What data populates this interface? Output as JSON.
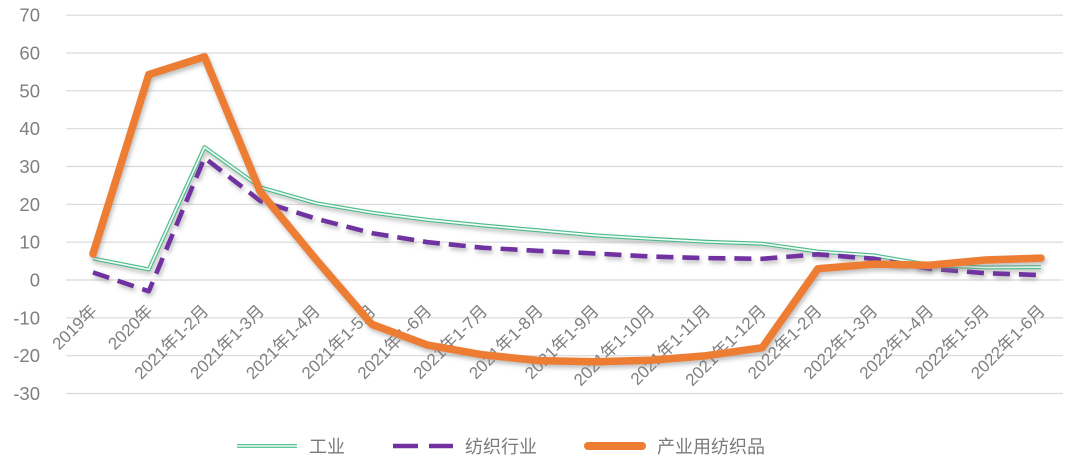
{
  "chart_data": {
    "type": "line",
    "title": "",
    "xlabel": "",
    "ylabel": "",
    "categories": [
      "2019年",
      "2020年",
      "2021年1-2月",
      "2021年1-3月",
      "2021年1-4月",
      "2021年1-5月",
      "2021年1-6月",
      "2021年1-7月",
      "2021年1-8月",
      "2021年1-9月",
      "2021年1-10月",
      "2021年1-11月",
      "2021年1-12月",
      "2022年1-2月",
      "2022年1-3月",
      "2022年1-4月",
      "2022年1-5月",
      "2022年1-6月"
    ],
    "series": [
      {
        "name": "工业",
        "color": "#4CBB8B",
        "inner_color": "#F2FBF7",
        "line_style": "thin-double",
        "values": [
          5.7,
          2.8,
          35.1,
          24.5,
          20.3,
          17.8,
          15.9,
          14.4,
          13.1,
          11.8,
          10.9,
          10.1,
          9.6,
          7.5,
          6.5,
          4.0,
          3.3,
          3.4
        ]
      },
      {
        "name": "纺织行业",
        "color": "#7030A0",
        "line_style": "dashed",
        "values": [
          2.0,
          -3.0,
          32.3,
          20.9,
          16.2,
          12.4,
          10.0,
          8.5,
          7.7,
          7.0,
          6.2,
          5.8,
          5.6,
          6.8,
          5.6,
          3.0,
          1.8,
          1.3
        ]
      },
      {
        "name": "产业用纺织品",
        "color": "#ED7D31",
        "line_style": "thick-solid",
        "values": [
          6.9,
          54.3,
          59.0,
          23.3,
          5.4,
          -11.7,
          -17.2,
          -19.8,
          -21.3,
          -21.6,
          -21.2,
          -20.0,
          -17.9,
          3.0,
          4.2,
          3.9,
          5.3,
          5.8
        ]
      }
    ],
    "ylim": [
      -30,
      70
    ],
    "yticks": [
      70,
      60,
      50,
      40,
      30,
      20,
      10,
      0,
      -10,
      -20,
      -30
    ],
    "grid": true,
    "legend_position": "bottom"
  },
  "style": {
    "background": "#FFFFFF",
    "grid_color": "#D9D9D9",
    "axis_text_color": "#7F7F7F",
    "legend_text_color": "#7A7A7A"
  }
}
